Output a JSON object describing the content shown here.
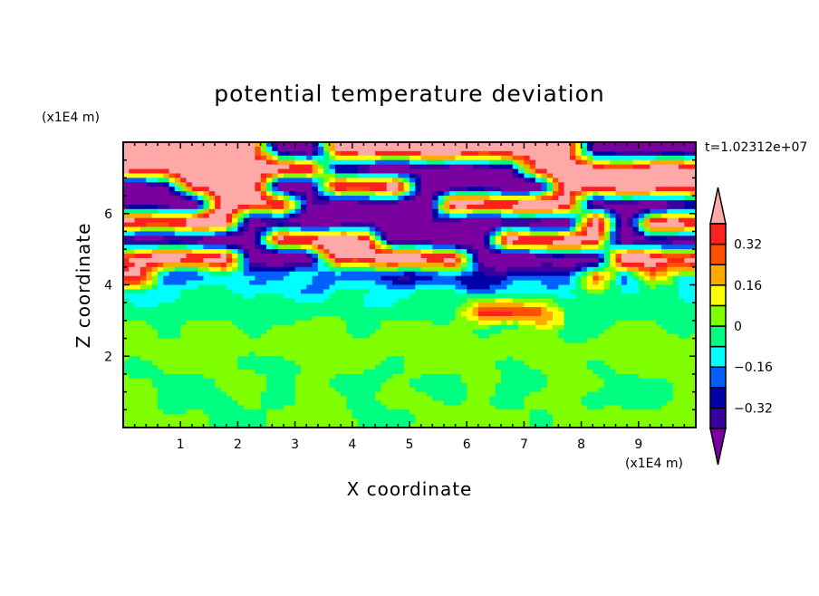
{
  "chart_data": {
    "type": "heatmap",
    "title": "potential temperature deviation",
    "xlabel": "X coordinate",
    "ylabel": "Z coordinate",
    "x_unit_label": "(x1E4 m)",
    "y_unit_label": "(x1E4 m)",
    "time_label": "t=1.02312e+07",
    "xlim": [
      0,
      10
    ],
    "ylim": [
      0,
      8
    ],
    "x_ticks": [
      1,
      2,
      3,
      4,
      5,
      6,
      7,
      8,
      9
    ],
    "y_ticks": [
      2,
      4,
      6
    ],
    "colorbar": {
      "levels": [
        -0.4,
        -0.32,
        -0.24,
        -0.16,
        -0.08,
        0,
        0.08,
        0.16,
        0.24,
        0.32,
        0.4
      ],
      "colors": [
        "#7a00a0",
        "#3a00a0",
        "#0000a8",
        "#0060ff",
        "#00ffff",
        "#00ff80",
        "#80ff00",
        "#ffff00",
        "#ffa800",
        "#ff5000",
        "#ff2020",
        "#ffa8a8"
      ],
      "tick_labels": [
        "0.32",
        "0.16",
        "0",
        "-0.16",
        "-0.32"
      ],
      "tick_values": [
        0.32,
        0.16,
        0,
        -0.16,
        -0.32
      ]
    },
    "grid_note_x": "20 columns spanning x 0-10",
    "grid": [
      [
        0.5,
        0.5,
        0.5,
        0.5,
        0.5,
        -0.5,
        -0.5,
        0.5,
        0.5,
        0.5,
        0.5,
        0.5,
        0.5,
        0.5,
        0.5,
        0.5,
        -0.5,
        -0.5,
        -0.5,
        -0.5
      ],
      [
        0.5,
        0.5,
        0.5,
        0.5,
        0.5,
        0.5,
        0.5,
        -0.5,
        -0.5,
        -0.5,
        -0.5,
        -0.5,
        -0.5,
        -0.5,
        0.5,
        0.5,
        0.5,
        0.5,
        0.5,
        0.5
      ],
      [
        -0.5,
        -0.5,
        0.5,
        0.5,
        0.5,
        -0.5,
        -0.5,
        0.5,
        0.5,
        0.5,
        -0.5,
        -0.5,
        -0.5,
        -0.5,
        -0.5,
        0.5,
        0.5,
        0.5,
        0.5,
        0.5
      ],
      [
        -0.5,
        -0.5,
        -0.5,
        0.5,
        0.5,
        0.5,
        -0.5,
        -0.5,
        -0.5,
        -0.5,
        -0.5,
        0.5,
        0.5,
        0.5,
        0.5,
        0.5,
        -0.5,
        -0.5,
        -0.5,
        -0.5
      ],
      [
        0.5,
        0.5,
        0.5,
        0.5,
        -0.5,
        -0.5,
        -0.5,
        -0.5,
        -0.5,
        -0.5,
        -0.5,
        -0.5,
        -0.5,
        -0.5,
        -0.5,
        -0.5,
        0.5,
        -0.5,
        0.5,
        0.5
      ],
      [
        -0.5,
        -0.5,
        -0.5,
        -0.5,
        -0.5,
        0.5,
        0.5,
        0.5,
        0.5,
        -0.5,
        -0.5,
        -0.5,
        -0.5,
        0.5,
        0.5,
        0.5,
        0.5,
        -0.5,
        -0.5,
        -0.5
      ],
      [
        0.5,
        0.5,
        0.5,
        0.5,
        -0.5,
        -0.5,
        -0.5,
        0.5,
        0.5,
        0.5,
        0.5,
        0.5,
        -0.5,
        -0.5,
        -0.5,
        -0.5,
        -0.5,
        0.5,
        0.5,
        0.5
      ],
      [
        0.35,
        -0.2,
        -0.2,
        -0.12,
        -0.12,
        -0.2,
        -0.2,
        -0.2,
        -0.3,
        -0.3,
        -0.2,
        -0.3,
        -0.3,
        -0.3,
        -0.3,
        -0.2,
        0.3,
        -0.2,
        0.3,
        -0.12
      ],
      [
        -0.1,
        -0.1,
        -0.1,
        -0.05,
        -0.1,
        -0.1,
        -0.1,
        -0.05,
        -0.1,
        -0.1,
        -0.1,
        -0.05,
        -0.1,
        -0.1,
        -0.05,
        -0.1,
        -0.1,
        -0.05,
        -0.1,
        -0.1
      ],
      [
        -0.03,
        -0.03,
        -0.03,
        -0.03,
        -0.03,
        -0.03,
        -0.03,
        -0.03,
        -0.03,
        -0.03,
        -0.03,
        -0.03,
        0.3,
        0.35,
        0.3,
        -0.03,
        -0.03,
        -0.03,
        -0.03,
        -0.03
      ],
      [
        0.03,
        -0.03,
        0.03,
        0.03,
        -0.03,
        0.03,
        0.03,
        0.03,
        -0.03,
        0.03,
        0.03,
        0.03,
        -0.03,
        0.03,
        0.03,
        -0.03,
        -0.03,
        0.03,
        0.03,
        -0.03
      ],
      [
        0.03,
        0.03,
        0.03,
        0.03,
        0.03,
        0.03,
        0.03,
        0.03,
        0.03,
        0.03,
        0.03,
        0.03,
        0.03,
        0.03,
        0.03,
        0.03,
        0.03,
        0.03,
        0.03,
        0.03
      ],
      [
        -0.03,
        0.03,
        0.03,
        0.03,
        -0.03,
        -0.03,
        0.03,
        0.03,
        0.03,
        -0.03,
        0.03,
        0.03,
        0.03,
        -0.03,
        0.03,
        0.03,
        -0.03,
        0.03,
        0.03,
        0.03
      ],
      [
        0.03,
        -0.03,
        -0.03,
        0.03,
        0.03,
        -0.03,
        0.03,
        -0.03,
        -0.03,
        0.03,
        -0.03,
        -0.03,
        0.03,
        -0.03,
        -0.03,
        0.03,
        0.03,
        -0.03,
        -0.03,
        0.03
      ],
      [
        0.03,
        -0.03,
        -0.03,
        -0.03,
        0.03,
        -0.03,
        0.03,
        0.03,
        -0.03,
        0.03,
        0.03,
        -0.03,
        0.03,
        -0.03,
        0.03,
        0.03,
        -0.03,
        -0.03,
        -0.03,
        0.03
      ],
      [
        0.03,
        0.03,
        0.03,
        -0.03,
        -0.03,
        0.03,
        0.03,
        0.03,
        -0.03,
        -0.03,
        0.03,
        0.03,
        0.03,
        0.03,
        -0.03,
        0.03,
        0.03,
        0.03,
        0.03,
        0.03
      ]
    ]
  }
}
